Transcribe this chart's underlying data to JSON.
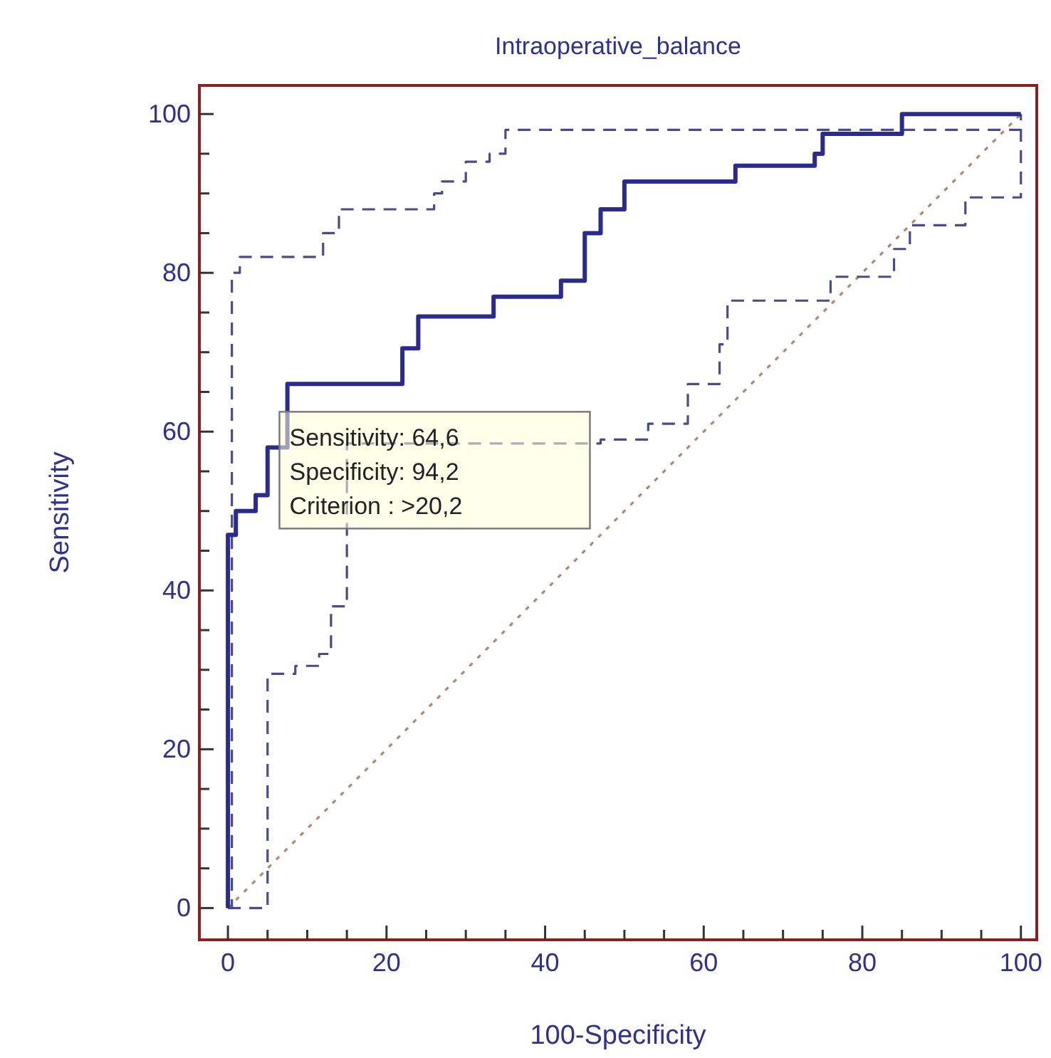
{
  "chart_data": {
    "type": "line",
    "title": "Intraoperative_balance",
    "xlabel": "100-Specificity",
    "ylabel": "Sensitivity",
    "xlim": [
      -3.6,
      102
    ],
    "ylim": [
      -4,
      103.6
    ],
    "xticks": [
      0,
      {
        "value": 5,
        "label": null
      },
      {
        "value": 10,
        "label": null
      },
      {
        "value": 15,
        "label": null
      },
      20,
      {
        "value": 25,
        "label": null
      },
      {
        "value": 30,
        "label": null
      },
      {
        "value": 35,
        "label": null
      },
      40,
      {
        "value": 45,
        "label": null
      },
      {
        "value": 50,
        "label": null
      },
      {
        "value": 55,
        "label": null
      },
      60,
      {
        "value": 65,
        "label": null
      },
      {
        "value": 70,
        "label": null
      },
      {
        "value": 75,
        "label": null
      },
      80,
      {
        "value": 85,
        "label": null
      },
      {
        "value": 90,
        "label": null
      },
      {
        "value": 95,
        "label": null
      },
      100
    ],
    "yticks": [
      0,
      {
        "value": 5,
        "label": null
      },
      {
        "value": 10,
        "label": null
      },
      {
        "value": 15,
        "label": null
      },
      20,
      {
        "value": 25,
        "label": null
      },
      {
        "value": 30,
        "label": null
      },
      {
        "value": 35,
        "label": null
      },
      40,
      {
        "value": 45,
        "label": null
      },
      {
        "value": 50,
        "label": null
      },
      {
        "value": 55,
        "label": null
      },
      60,
      {
        "value": 65,
        "label": null
      },
      {
        "value": 70,
        "label": null
      },
      {
        "value": 75,
        "label": null
      },
      80,
      {
        "value": 85,
        "label": null
      },
      {
        "value": 90,
        "label": null
      },
      {
        "value": 95,
        "label": null
      },
      100
    ],
    "grid": false,
    "annotations": [
      "Sensitivity: 64,6",
      "Specificity: 94,2",
      "Criterion : >20,2"
    ],
    "series": [
      {
        "color": "#b08a70",
        "line_style": "dotted",
        "x": [
          0,
          100
        ],
        "values": [
          0,
          100
        ]
      },
      {
        "color": "#4a4a8e",
        "line_style": "dashed",
        "x": [
          0,
          5,
          5,
          8.5,
          8.5,
          11.5,
          11.5,
          13,
          13,
          15,
          15,
          47,
          47,
          53,
          53,
          58,
          58,
          62,
          62,
          63,
          63,
          76,
          76,
          84,
          84,
          86,
          86,
          93,
          93,
          100,
          100
        ],
        "values": [
          0,
          0,
          29.5,
          29.5,
          30.5,
          30.5,
          32,
          32,
          38,
          38,
          58.5,
          58.5,
          59,
          59,
          61,
          61,
          66,
          66,
          71,
          71,
          76.5,
          76.5,
          79.5,
          79.5,
          83,
          83,
          86,
          86,
          89.5,
          89.5,
          100
        ]
      },
      {
        "color": "#4a4a8e",
        "line_style": "dashed",
        "x": [
          0,
          0.5,
          0.5,
          1.5,
          1.5,
          12,
          12,
          14,
          14,
          26,
          26,
          27,
          27,
          30,
          30,
          33,
          33,
          35,
          35,
          100
        ],
        "values": [
          0,
          0,
          80,
          80,
          82,
          82,
          85,
          85,
          88,
          88,
          90,
          90,
          91.5,
          91.5,
          94,
          94,
          95,
          95,
          98,
          98
        ]
      },
      {
        "color": "#2b2b8f",
        "line_style": "solid",
        "x": [
          0,
          0,
          1,
          1,
          3.5,
          3.5,
          5,
          5,
          7.5,
          7.5,
          22,
          22,
          24,
          24,
          33.5,
          33.5,
          42,
          42,
          45,
          45,
          47,
          47,
          50,
          50,
          64,
          64,
          74,
          74,
          75,
          75,
          85,
          85,
          100
        ],
        "values": [
          0,
          47,
          47,
          50,
          50,
          52,
          52,
          58,
          58,
          66,
          66,
          70.5,
          70.5,
          74.5,
          74.5,
          77,
          77,
          79,
          79,
          85,
          85,
          88,
          88,
          91.5,
          91.5,
          93.5,
          93.5,
          95,
          95,
          97.5,
          97.5,
          100,
          100
        ]
      }
    ]
  }
}
